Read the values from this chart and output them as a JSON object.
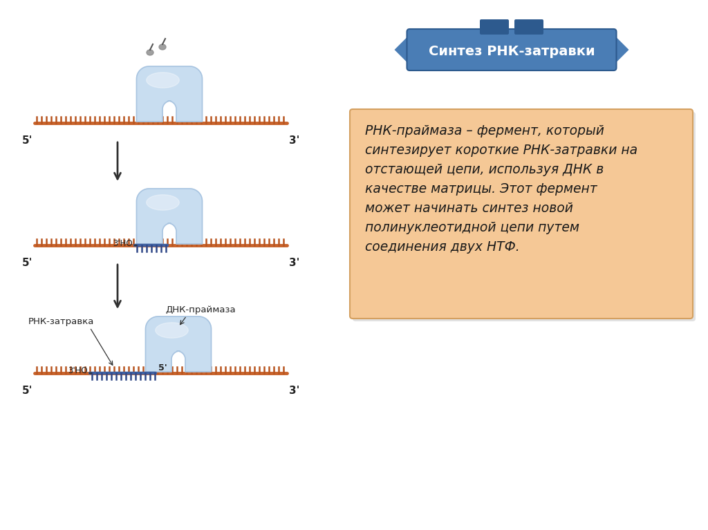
{
  "title_ribbon": "Синтез РНК-затравки",
  "title_color": "#4a7db5",
  "title_color_dark": "#2d5a8e",
  "title_text_color": "#ffffff",
  "text_box_text": "РНК-праймаза – фермент, который\nсинтезирует короткие РНК-затравки на\nотстающей цепи, используя ДНК в\nкачестве матрицы. Этот фермент\nможет начинать синтез новой\nполинуклеотидной цепи путем\nсоединения двух НТФ.",
  "text_box_bg": "#f5c896",
  "text_box_border": "#d4a060",
  "strand_color": "#c8622a",
  "strand_tick_color": "#b85520",
  "enzyme_color_light": "#c8ddf0",
  "enzyme_color_mid": "#a0bedd",
  "enzyme_color_dark": "#6088b8",
  "primer_color": "#4060a0",
  "primer_tick_color": "#304888",
  "label_rnk": "РНК-затравка",
  "label_dnk": "ДНК-праймаза",
  "arrow_color": "#303030",
  "bg_color": "#ffffff"
}
